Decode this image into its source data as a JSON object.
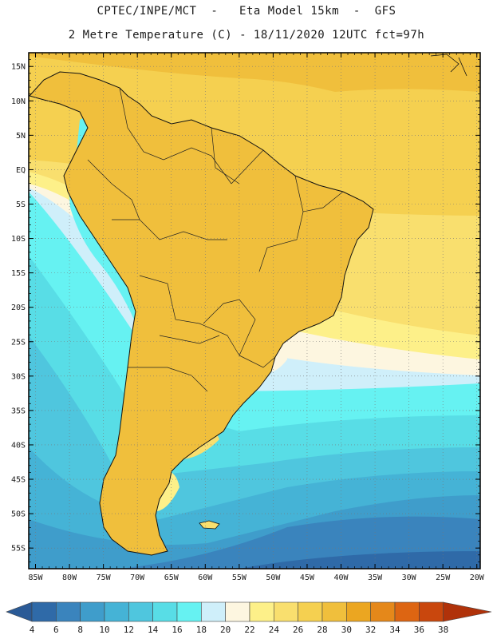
{
  "header": {
    "title_line1": "CPTEC/INPE/MCT  -   Eta Model 15km  -  GFS",
    "title_line2": "2 Metre Temperature (C) - 18/11/2020 12UTC fct=97h"
  },
  "map": {
    "lat_labels": [
      "15N",
      "10N",
      "5N",
      "EQ",
      "5S",
      "10S",
      "15S",
      "20S",
      "25S",
      "30S",
      "35S",
      "40S",
      "45S",
      "50S",
      "55S"
    ],
    "lat_values": [
      15,
      10,
      5,
      0,
      -5,
      -10,
      -15,
      -20,
      -25,
      -30,
      -35,
      -40,
      -45,
      -50,
      -55
    ],
    "lon_labels": [
      "85W",
      "80W",
      "75W",
      "70W",
      "65W",
      "60W",
      "55W",
      "50W",
      "45W",
      "40W",
      "35W",
      "30W",
      "25W",
      "20W"
    ],
    "lon_values": [
      -85,
      -80,
      -75,
      -70,
      -65,
      -60,
      -55,
      -50,
      -45,
      -40,
      -35,
      -30,
      -25,
      -20
    ],
    "lon_range": [
      -86,
      -19.5
    ],
    "lat_range": [
      -58,
      17
    ]
  },
  "colorbar": {
    "labels": [
      "4",
      "6",
      "8",
      "10",
      "12",
      "14",
      "16",
      "18",
      "20",
      "22",
      "24",
      "26",
      "28",
      "30",
      "32",
      "34",
      "36",
      "38"
    ],
    "colors": [
      "#2f6aa8",
      "#3a84bd",
      "#3f9dcb",
      "#45b3d6",
      "#4fc6de",
      "#58dde6",
      "#66f2f2",
      "#cfeffa",
      "#fdf6e0",
      "#fdf089",
      "#f9df6e",
      "#f5d050",
      "#f0bf3c",
      "#eba621",
      "#e5881a",
      "#dd6512",
      "#c9470d",
      "#b0320a"
    ]
  }
}
